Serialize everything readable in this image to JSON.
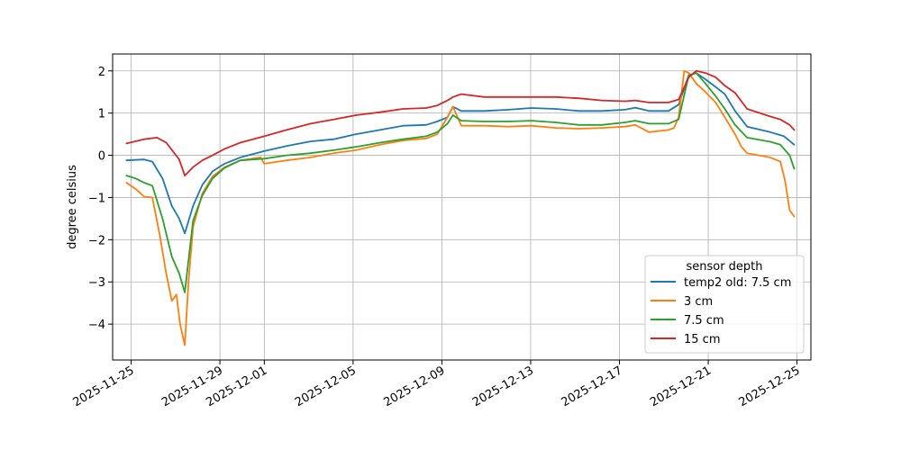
{
  "chart_data": {
    "type": "line",
    "title": "",
    "xlabel": "",
    "ylabel": "degree celsius",
    "x_type": "date",
    "xlim": [
      "2025-11-24T04:00",
      "2025-12-25T15:00"
    ],
    "ylim": [
      -4.85,
      2.4
    ],
    "x_ticks": [
      "2025-11-25",
      "2025-11-29",
      "2025-12-01",
      "2025-12-05",
      "2025-12-09",
      "2025-12-13",
      "2025-12-17",
      "2025-12-21",
      "2025-12-25"
    ],
    "y_ticks": [
      2,
      1,
      0,
      -1,
      -2,
      -3,
      -4
    ],
    "y_tick_labels": [
      "2",
      "1",
      "0",
      "−1",
      "−2",
      "−3",
      "−4"
    ],
    "grid": true,
    "legend": {
      "title": "sensor depth",
      "location": "lower-right"
    },
    "series": [
      {
        "name": "temp2 old: 7.5 cm",
        "color": "#1f77b4",
        "x": [
          "2025-11-24T19:00",
          "2025-11-25T14:00",
          "2025-11-25T23:00",
          "2025-11-26T10:00",
          "2025-11-26T20:00",
          "2025-11-27T04:00",
          "2025-11-27T10:00",
          "2025-11-27T19:00",
          "2025-11-28T05:00",
          "2025-11-28T16:00",
          "2025-11-29T05:00",
          "2025-11-29T22:00",
          "2025-12-01T00:00",
          "2025-12-02T00:00",
          "2025-12-03T02:00",
          "2025-12-04T03:00",
          "2025-12-05T03:00",
          "2025-12-06T05:00",
          "2025-12-07T06:00",
          "2025-12-08T07:00",
          "2025-12-08T19:00",
          "2025-12-09T06:00",
          "2025-12-09T12:00",
          "2025-12-09T21:00",
          "2025-12-10T22:00",
          "2025-12-12T00:00",
          "2025-12-13T01:00",
          "2025-12-14T03:00",
          "2025-12-15T04:00",
          "2025-12-16T05:00",
          "2025-12-17T06:00",
          "2025-12-17T17:00",
          "2025-12-18T08:00",
          "2025-12-19T05:00",
          "2025-12-19T16:00",
          "2025-12-20T03:00",
          "2025-12-20T11:00",
          "2025-12-20T21:00",
          "2025-12-21T08:00",
          "2025-12-21T18:00",
          "2025-12-22T05:00",
          "2025-12-22T18:00",
          "2025-12-23T19:00",
          "2025-12-24T10:00",
          "2025-12-24T21:00"
        ],
        "y": [
          -0.12,
          -0.1,
          -0.15,
          -0.55,
          -1.2,
          -1.5,
          -1.85,
          -1.2,
          -0.7,
          -0.38,
          -0.2,
          -0.05,
          0.1,
          0.22,
          0.33,
          0.38,
          0.5,
          0.6,
          0.7,
          0.72,
          0.8,
          0.9,
          1.15,
          1.05,
          1.05,
          1.08,
          1.12,
          1.1,
          1.05,
          1.05,
          1.08,
          1.13,
          1.05,
          1.05,
          1.2,
          1.9,
          1.95,
          1.8,
          1.62,
          1.45,
          1.05,
          0.68,
          0.55,
          0.45,
          0.25
        ]
      },
      {
        "name": "3 cm",
        "color": "#ff7f0e",
        "x": [
          "2025-11-24T19:00",
          "2025-11-25T05:00",
          "2025-11-25T14:00",
          "2025-11-25T23:00",
          "2025-11-26T07:00",
          "2025-11-26T14:00",
          "2025-11-26T20:00",
          "2025-11-27T01:00",
          "2025-11-27T05:00",
          "2025-11-27T10:00",
          "2025-11-27T14:00",
          "2025-11-27T19:00",
          "2025-11-28T05:00",
          "2025-11-28T16:00",
          "2025-11-29T05:00",
          "2025-11-29T22:00",
          "2025-11-30T20:00",
          "2025-12-01T00:00",
          "2025-12-02T00:00",
          "2025-12-03T02:00",
          "2025-12-04T03:00",
          "2025-12-05T03:00",
          "2025-12-06T05:00",
          "2025-12-07T06:00",
          "2025-12-08T07:00",
          "2025-12-08T19:00",
          "2025-12-09T06:00",
          "2025-12-09T12:00",
          "2025-12-09T21:00",
          "2025-12-10T22:00",
          "2025-12-12T00:00",
          "2025-12-13T01:00",
          "2025-12-14T03:00",
          "2025-12-15T04:00",
          "2025-12-16T05:00",
          "2025-12-17T06:00",
          "2025-12-17T17:00",
          "2025-12-18T08:00",
          "2025-12-19T05:00",
          "2025-12-19T11:00",
          "2025-12-19T16:00",
          "2025-12-19T22:00",
          "2025-12-20T03:00",
          "2025-12-20T11:00",
          "2025-12-20T21:00",
          "2025-12-21T08:00",
          "2025-12-21T18:00",
          "2025-12-22T05:00",
          "2025-12-22T12:00",
          "2025-12-22T18:00",
          "2025-12-23T19:00",
          "2025-12-24T06:00",
          "2025-12-24T11:00",
          "2025-12-24T16:00",
          "2025-12-24T21:00"
        ],
        "y": [
          -0.65,
          -0.8,
          -0.98,
          -1.0,
          -1.9,
          -2.8,
          -3.45,
          -3.3,
          -4.0,
          -4.5,
          -3.0,
          -1.7,
          -0.9,
          -0.5,
          -0.28,
          -0.12,
          -0.05,
          -0.2,
          -0.12,
          -0.05,
          0.05,
          0.12,
          0.25,
          0.35,
          0.4,
          0.5,
          0.9,
          1.15,
          0.7,
          0.7,
          0.68,
          0.7,
          0.65,
          0.63,
          0.65,
          0.68,
          0.72,
          0.55,
          0.6,
          0.65,
          0.9,
          2.0,
          1.95,
          1.7,
          1.5,
          1.25,
          0.9,
          0.5,
          0.2,
          0.05,
          -0.05,
          -0.15,
          -0.6,
          -1.3,
          -1.45
        ]
      },
      {
        "name": "7.5 cm",
        "color": "#2ca02c",
        "x": [
          "2025-11-24T19:00",
          "2025-11-25T05:00",
          "2025-11-25T14:00",
          "2025-11-25T23:00",
          "2025-11-26T10:00",
          "2025-11-26T20:00",
          "2025-11-27T04:00",
          "2025-11-27T10:00",
          "2025-11-27T19:00",
          "2025-11-28T05:00",
          "2025-11-28T16:00",
          "2025-11-29T05:00",
          "2025-11-29T22:00",
          "2025-12-01T00:00",
          "2025-12-02T00:00",
          "2025-12-03T02:00",
          "2025-12-04T03:00",
          "2025-12-05T03:00",
          "2025-12-06T05:00",
          "2025-12-07T06:00",
          "2025-12-08T07:00",
          "2025-12-08T19:00",
          "2025-12-09T06:00",
          "2025-12-09T12:00",
          "2025-12-09T21:00",
          "2025-12-10T22:00",
          "2025-12-12T00:00",
          "2025-12-13T01:00",
          "2025-12-14T03:00",
          "2025-12-15T04:00",
          "2025-12-16T05:00",
          "2025-12-17T06:00",
          "2025-12-17T17:00",
          "2025-12-18T08:00",
          "2025-12-19T05:00",
          "2025-12-19T16:00",
          "2025-12-20T03:00",
          "2025-12-20T11:00",
          "2025-12-20T21:00",
          "2025-12-21T08:00",
          "2025-12-21T18:00",
          "2025-12-22T05:00",
          "2025-12-22T18:00",
          "2025-12-23T19:00",
          "2025-12-24T06:00",
          "2025-12-24T16:00",
          "2025-12-24T21:00"
        ],
        "y": [
          -0.48,
          -0.55,
          -0.65,
          -0.72,
          -1.5,
          -2.4,
          -2.8,
          -3.25,
          -1.55,
          -0.95,
          -0.55,
          -0.3,
          -0.12,
          -0.08,
          0.0,
          0.05,
          0.12,
          0.2,
          0.3,
          0.38,
          0.45,
          0.55,
          0.75,
          0.95,
          0.82,
          0.8,
          0.8,
          0.82,
          0.78,
          0.72,
          0.72,
          0.78,
          0.82,
          0.75,
          0.75,
          0.85,
          1.9,
          1.95,
          1.7,
          1.4,
          1.1,
          0.72,
          0.42,
          0.32,
          0.25,
          0.0,
          -0.32
        ]
      },
      {
        "name": "15 cm",
        "color": "#d62728",
        "x": [
          "2025-11-24T19:00",
          "2025-11-25T14:00",
          "2025-11-26T04:00",
          "2025-11-26T14:00",
          "2025-11-27T04:00",
          "2025-11-27T10:00",
          "2025-11-27T19:00",
          "2025-11-28T05:00",
          "2025-11-28T16:00",
          "2025-11-29T05:00",
          "2025-11-29T22:00",
          "2025-12-01T00:00",
          "2025-12-02T00:00",
          "2025-12-03T02:00",
          "2025-12-04T03:00",
          "2025-12-05T03:00",
          "2025-12-06T05:00",
          "2025-12-07T06:00",
          "2025-12-08T07:00",
          "2025-12-08T19:00",
          "2025-12-09T06:00",
          "2025-12-09T12:00",
          "2025-12-09T21:00",
          "2025-12-10T22:00",
          "2025-12-12T00:00",
          "2025-12-13T01:00",
          "2025-12-14T03:00",
          "2025-12-15T04:00",
          "2025-12-16T05:00",
          "2025-12-17T06:00",
          "2025-12-17T17:00",
          "2025-12-18T08:00",
          "2025-12-19T05:00",
          "2025-12-19T16:00",
          "2025-12-20T03:00",
          "2025-12-20T11:00",
          "2025-12-20T21:00",
          "2025-12-21T08:00",
          "2025-12-21T18:00",
          "2025-12-22T05:00",
          "2025-12-22T18:00",
          "2025-12-23T19:00",
          "2025-12-24T06:00",
          "2025-12-24T16:00",
          "2025-12-24T21:00"
        ],
        "y": [
          0.28,
          0.38,
          0.42,
          0.3,
          -0.1,
          -0.48,
          -0.28,
          -0.12,
          0.0,
          0.15,
          0.3,
          0.45,
          0.6,
          0.75,
          0.85,
          0.95,
          1.02,
          1.1,
          1.12,
          1.18,
          1.3,
          1.38,
          1.45,
          1.38,
          1.38,
          1.38,
          1.38,
          1.35,
          1.3,
          1.28,
          1.3,
          1.25,
          1.25,
          1.32,
          1.85,
          2.0,
          1.95,
          1.85,
          1.65,
          1.48,
          1.1,
          0.92,
          0.85,
          0.72,
          0.6
        ]
      }
    ]
  }
}
